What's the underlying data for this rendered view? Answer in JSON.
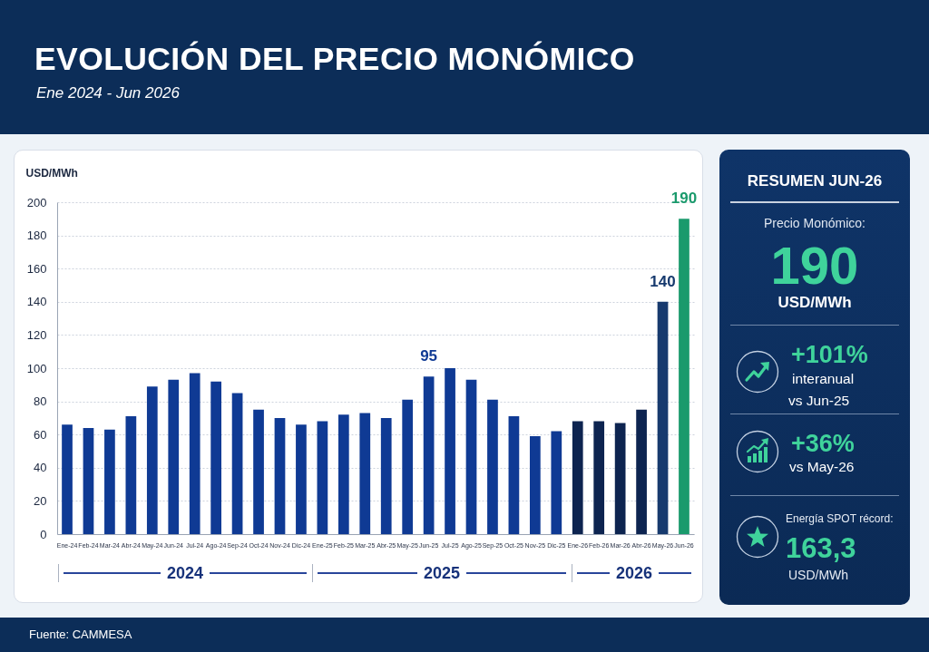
{
  "chart_data": [
    {
      "type": "bar",
      "title": "EVOLUCIÓN DEL PRECIO MONÓMICO",
      "subtitle": "Ene 2024 - Jun 2026",
      "ylabel": "USD/MWh",
      "categories": [
        "Ene-24",
        "Feb-24",
        "Mar-24",
        "Abr-24",
        "May-24",
        "Jun-24",
        "Jul-24",
        "Ago-24",
        "Sep-24",
        "Oct-24",
        "Nov-24",
        "Dic-24",
        "Ene-25",
        "Feb-25",
        "Mar-25",
        "Abr-25",
        "May-25",
        "Jun-25",
        "Jul-25",
        "Ago-25",
        "Sep-25",
        "Oct-25",
        "Nov-25",
        "Dic-25",
        "Ene-26",
        "Feb-26",
        "Mar-26",
        "Abr-26",
        "May-26",
        "Jun-26"
      ],
      "values": [
        66,
        64,
        63,
        71,
        89,
        93,
        97,
        92,
        85,
        75,
        70,
        66,
        68,
        72,
        73,
        70,
        81,
        95,
        100,
        93,
        81,
        71,
        59,
        62,
        68,
        68,
        67,
        75,
        140,
        190
      ],
      "colors": [
        "#0f3a94",
        "#0f3a94",
        "#0f3a94",
        "#0f3a94",
        "#0f3a94",
        "#0f3a94",
        "#0f3a94",
        "#0f3a94",
        "#0f3a94",
        "#0f3a94",
        "#0f3a94",
        "#0f3a94",
        "#0f3a94",
        "#0f3a94",
        "#0f3a94",
        "#0f3a94",
        "#0f3a94",
        "#0f3a94",
        "#0f3a94",
        "#0f3a94",
        "#0f3a94",
        "#0f3a94",
        "#0f3a94",
        "#0f3a94",
        "#0d2450",
        "#0d2450",
        "#0d2450",
        "#0d2450",
        "#173a6e",
        "#1a9a6c"
      ],
      "value_labels": [
        null,
        null,
        null,
        null,
        null,
        null,
        null,
        null,
        null,
        null,
        null,
        null,
        null,
        null,
        null,
        null,
        null,
        "95",
        null,
        null,
        null,
        null,
        null,
        null,
        null,
        null,
        null,
        null,
        "140",
        "190"
      ],
      "ylim": [
        0,
        200
      ],
      "yticks": [
        0,
        20,
        40,
        60,
        80,
        100,
        120,
        140,
        160,
        180,
        200
      ],
      "grid": "y",
      "annotations": [
        "2024",
        "2025",
        "2026",
        "Fuente: CAMMESA"
      ]
    },
    {
      "type": "other",
      "title": "RESUMEN JUN-26",
      "annotations": [
        "Precio Monómico:",
        "190",
        "USD/MWh",
        "+101%",
        "interanual",
        "vs Jun-25",
        "+36%",
        "vs May-26",
        "Energía SPOT récord:",
        "163,3",
        "USD/MWh"
      ]
    }
  ]
}
